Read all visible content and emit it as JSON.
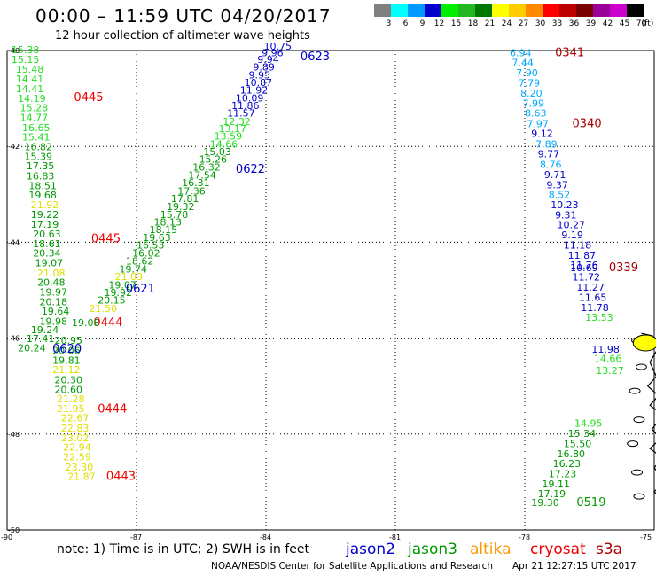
{
  "header": {
    "title": "00:00 – 11:59 UTC 04/20/2017",
    "subtitle": "12 hour collection of altimeter wave heights"
  },
  "color_scale": {
    "unit": "(ft)",
    "bins": [
      {
        "label": "3",
        "color": "#808080"
      },
      {
        "label": "6",
        "color": "#00ffff"
      },
      {
        "label": "9",
        "color": "#0099ff"
      },
      {
        "label": "12",
        "color": "#0000cc"
      },
      {
        "label": "15",
        "color": "#00ee00"
      },
      {
        "label": "18",
        "color": "#22b822"
      },
      {
        "label": "21",
        "color": "#007700"
      },
      {
        "label": "24",
        "color": "#ffff00"
      },
      {
        "label": "27",
        "color": "#ffcc00"
      },
      {
        "label": "30",
        "color": "#ff8800"
      },
      {
        "label": "33",
        "color": "#ff0000"
      },
      {
        "label": "36",
        "color": "#bb0000"
      },
      {
        "label": "39",
        "color": "#770000"
      },
      {
        "label": "42",
        "color": "#990099"
      },
      {
        "label": "45",
        "color": "#cc00cc"
      },
      {
        "label": "70",
        "color": "#000000"
      }
    ]
  },
  "axes": {
    "lat_ticks": [
      "-40",
      "-42",
      "-44",
      "-46",
      "-48",
      "-50"
    ],
    "lon_ticks": [
      "-90",
      "-87",
      "-84",
      "-81",
      "-78",
      "-75"
    ]
  },
  "colors": {
    "jason2": "#0000cc",
    "jason3": "#009900",
    "altika": "#ff9900",
    "cryosat": "#ee0000",
    "s3a": "#aa0000",
    "light_blue": "#00aaff",
    "yellow": "#e0e000",
    "light_green": "#22dd22"
  },
  "tracks": [
    {
      "id": "jason3-0445-descending",
      "points": [
        {
          "v": "15.38",
          "lat": -40.06,
          "lon": -89.9,
          "c": "light_green"
        },
        {
          "v": "15.15",
          "lat": -40.26,
          "lon": -89.9,
          "c": "light_green"
        },
        {
          "v": "15.48",
          "lat": -40.46,
          "lon": -89.8,
          "c": "light_green"
        },
        {
          "v": "14.41",
          "lat": -40.67,
          "lon": -89.8,
          "c": "light_green"
        },
        {
          "v": "14.41",
          "lat": -40.87,
          "lon": -89.8,
          "c": "light_green"
        },
        {
          "v": "14.19",
          "lat": -41.07,
          "lon": -89.75,
          "c": "light_green"
        },
        {
          "v": "15.28",
          "lat": -41.27,
          "lon": -89.7,
          "c": "light_green"
        },
        {
          "v": "14.77",
          "lat": -41.47,
          "lon": -89.7,
          "c": "light_green"
        },
        {
          "v": "16.65",
          "lat": -41.68,
          "lon": -89.65,
          "c": "light_green"
        },
        {
          "v": "15.41",
          "lat": -41.88,
          "lon": -89.65,
          "c": "light_green"
        },
        {
          "v": "16.82",
          "lat": -42.08,
          "lon": -89.6,
          "c": "jason3"
        },
        {
          "v": "15.39",
          "lat": -42.28,
          "lon": -89.6,
          "c": "jason3"
        },
        {
          "v": "17.35",
          "lat": -42.48,
          "lon": -89.55,
          "c": "jason3"
        },
        {
          "v": "16.83",
          "lat": -42.69,
          "lon": -89.55,
          "c": "jason3"
        },
        {
          "v": "18.51",
          "lat": -42.89,
          "lon": -89.5,
          "c": "jason3"
        },
        {
          "v": "19.68",
          "lat": -43.09,
          "lon": -89.5,
          "c": "jason3"
        },
        {
          "v": "21.92",
          "lat": -43.29,
          "lon": -89.45,
          "c": "yellow"
        },
        {
          "v": "19.22",
          "lat": -43.49,
          "lon": -89.45,
          "c": "jason3"
        },
        {
          "v": "17.19",
          "lat": -43.7,
          "lon": -89.45,
          "c": "jason3"
        },
        {
          "v": "20.63",
          "lat": -43.9,
          "lon": -89.4,
          "c": "jason3"
        },
        {
          "v": "18.61",
          "lat": -44.1,
          "lon": -89.4,
          "c": "jason3"
        },
        {
          "v": "20.34",
          "lat": -44.3,
          "lon": -89.4,
          "c": "jason3"
        },
        {
          "v": "19.07",
          "lat": -44.5,
          "lon": -89.35,
          "c": "jason3"
        },
        {
          "v": "21.08",
          "lat": -44.71,
          "lon": -89.3,
          "c": "yellow"
        },
        {
          "v": "20.48",
          "lat": -44.91,
          "lon": -89.3,
          "c": "jason3"
        },
        {
          "v": "19.97",
          "lat": -45.11,
          "lon": -89.25,
          "c": "jason3"
        },
        {
          "v": "20.18",
          "lat": -45.31,
          "lon": -89.25,
          "c": "jason3"
        },
        {
          "v": "19.64",
          "lat": -45.51,
          "lon": -89.2,
          "c": "jason3"
        },
        {
          "v": "19.98",
          "lat": -45.72,
          "lon": -89.25,
          "c": "jason3"
        },
        {
          "v": "19.24",
          "lat": -45.9,
          "lon": -89.45,
          "c": "jason3"
        },
        {
          "v": "17.41",
          "lat": -46.08,
          "lon": -89.55,
          "c": "jason3"
        },
        {
          "v": "20.24",
          "lat": -46.28,
          "lon": -89.75,
          "c": "jason3"
        }
      ],
      "time": {
        "label": "0445",
        "lat": -41.05,
        "lon": -88.45,
        "c": "cryosat"
      }
    },
    {
      "id": "jason3-0444-descending",
      "points": [
        {
          "v": "20.95",
          "lat": -46.12,
          "lon": -88.9,
          "c": "jason3"
        },
        {
          "v": "20.06",
          "lat": -46.33,
          "lon": -88.95,
          "c": "jason3"
        },
        {
          "v": "19.81",
          "lat": -46.53,
          "lon": -88.95,
          "c": "jason3"
        },
        {
          "v": "21.12",
          "lat": -46.73,
          "lon": -88.95,
          "c": "yellow"
        },
        {
          "v": "20.30",
          "lat": -46.94,
          "lon": -88.9,
          "c": "jason3"
        },
        {
          "v": "20.60",
          "lat": -47.14,
          "lon": -88.9,
          "c": "jason3"
        },
        {
          "v": "21.28",
          "lat": -47.34,
          "lon": -88.85,
          "c": "yellow"
        },
        {
          "v": "21.95",
          "lat": -47.54,
          "lon": -88.85,
          "c": "yellow"
        },
        {
          "v": "22.67",
          "lat": -47.74,
          "lon": -88.75,
          "c": "yellow"
        },
        {
          "v": "22.83",
          "lat": -47.95,
          "lon": -88.75,
          "c": "yellow"
        },
        {
          "v": "23.02",
          "lat": -48.15,
          "lon": -88.75,
          "c": "yellow"
        },
        {
          "v": "22.94",
          "lat": -48.35,
          "lon": -88.7,
          "c": "yellow"
        },
        {
          "v": "22.59",
          "lat": -48.55,
          "lon": -88.7,
          "c": "yellow"
        },
        {
          "v": "23.30",
          "lat": -48.76,
          "lon": -88.65,
          "c": "yellow"
        },
        {
          "v": "21.87",
          "lat": -48.96,
          "lon": -88.6,
          "c": "yellow"
        }
      ],
      "times": [
        {
          "label": "0444",
          "lat": -45.75,
          "lon": -88.0,
          "c": "cryosat"
        },
        {
          "label": "0444",
          "lat": -47.55,
          "lon": -87.9,
          "c": "cryosat"
        },
        {
          "label": "0443",
          "lat": -48.96,
          "lon": -87.7,
          "c": "cryosat"
        }
      ]
    },
    {
      "id": "jason3-ascending-0621",
      "points": [
        {
          "v": "10.75",
          "lat": -39.98,
          "lon": -84.05,
          "c": "jason2"
        },
        {
          "v": "9.96",
          "lat": -40.12,
          "lon": -84.1,
          "c": "jason2"
        },
        {
          "v": "9.94",
          "lat": -40.26,
          "lon": -84.2,
          "c": "jason2"
        },
        {
          "v": "9.89",
          "lat": -40.42,
          "lon": -84.3,
          "c": "jason2"
        },
        {
          "v": "9.95",
          "lat": -40.58,
          "lon": -84.4,
          "c": "jason2"
        },
        {
          "v": "10.87",
          "lat": -40.74,
          "lon": -84.5,
          "c": "jason2"
        },
        {
          "v": "11.92",
          "lat": -40.9,
          "lon": -84.6,
          "c": "jason2"
        },
        {
          "v": "10.09",
          "lat": -41.06,
          "lon": -84.7,
          "c": "jason2"
        },
        {
          "v": "11.86",
          "lat": -41.22,
          "lon": -84.8,
          "c": "jason2"
        },
        {
          "v": "11.57",
          "lat": -41.38,
          "lon": -84.9,
          "c": "jason2"
        },
        {
          "v": "12.32",
          "lat": -41.55,
          "lon": -85.0,
          "c": "light_green"
        },
        {
          "v": "13.17",
          "lat": -41.7,
          "lon": -85.1,
          "c": "light_green"
        },
        {
          "v": "13.59",
          "lat": -41.86,
          "lon": -85.2,
          "c": "light_green"
        },
        {
          "v": "14.66",
          "lat": -42.02,
          "lon": -85.3,
          "c": "light_green"
        },
        {
          "v": "15.03",
          "lat": -42.18,
          "lon": -85.45,
          "c": "jason3"
        },
        {
          "v": "15.26",
          "lat": -42.34,
          "lon": -85.55,
          "c": "jason3"
        },
        {
          "v": "16.32",
          "lat": -42.5,
          "lon": -85.7,
          "c": "jason3"
        },
        {
          "v": "17.54",
          "lat": -42.67,
          "lon": -85.8,
          "c": "jason3"
        },
        {
          "v": "16.31",
          "lat": -42.83,
          "lon": -85.95,
          "c": "jason3"
        },
        {
          "v": "17.36",
          "lat": -43.0,
          "lon": -86.05,
          "c": "jason3"
        },
        {
          "v": "17.81",
          "lat": -43.16,
          "lon": -86.2,
          "c": "jason3"
        },
        {
          "v": "19.32",
          "lat": -43.33,
          "lon": -86.3,
          "c": "jason3"
        },
        {
          "v": "15.78",
          "lat": -43.49,
          "lon": -86.45,
          "c": "jason3"
        },
        {
          "v": "18.13",
          "lat": -43.65,
          "lon": -86.6,
          "c": "jason3"
        },
        {
          "v": "18.15",
          "lat": -43.81,
          "lon": -86.7,
          "c": "jason3"
        },
        {
          "v": "19.63",
          "lat": -43.97,
          "lon": -86.85,
          "c": "jason3"
        },
        {
          "v": "16.53",
          "lat": -44.13,
          "lon": -87.0,
          "c": "jason3"
        },
        {
          "v": "16.02",
          "lat": -44.3,
          "lon": -87.1,
          "c": "jason3"
        },
        {
          "v": "18.62",
          "lat": -44.46,
          "lon": -87.25,
          "c": "jason3"
        },
        {
          "v": "19.74",
          "lat": -44.63,
          "lon": -87.4,
          "c": "jason3"
        },
        {
          "v": "21.03",
          "lat": -44.79,
          "lon": -87.5,
          "c": "yellow"
        },
        {
          "v": "19.07",
          "lat": -44.96,
          "lon": -87.65,
          "c": "jason3"
        },
        {
          "v": "19.92",
          "lat": -45.12,
          "lon": -87.75,
          "c": "jason3"
        },
        {
          "v": "20.15",
          "lat": -45.28,
          "lon": -87.9,
          "c": "jason3"
        },
        {
          "v": "21.50",
          "lat": -45.45,
          "lon": -88.1,
          "c": "yellow"
        },
        {
          "v": "19.08",
          "lat": -45.75,
          "lon": -88.5,
          "c": "jason3"
        }
      ],
      "times": [
        {
          "label": "0623",
          "lat": -40.2,
          "lon": -83.2,
          "c": "jason2"
        },
        {
          "label": "0622",
          "lat": -42.55,
          "lon": -84.7,
          "c": "jason2"
        },
        {
          "label": "0445",
          "lat": -44.0,
          "lon": -88.05,
          "c": "cryosat"
        },
        {
          "label": "0621",
          "lat": -45.05,
          "lon": -87.25,
          "c": "jason2"
        },
        {
          "label": "0620",
          "lat": -46.3,
          "lon": -88.95,
          "c": "jason2"
        }
      ]
    },
    {
      "id": "jason2-0340-descending",
      "points": [
        {
          "v": "6.94",
          "lat": -40.12,
          "lon": -78.35,
          "c": "light_blue"
        },
        {
          "v": "7.44",
          "lat": -40.32,
          "lon": -78.3,
          "c": "light_blue"
        },
        {
          "v": "7.90",
          "lat": -40.54,
          "lon": -78.2,
          "c": "light_blue"
        },
        {
          "v": "7.79",
          "lat": -40.75,
          "lon": -78.15,
          "c": "light_blue"
        },
        {
          "v": "8.20",
          "lat": -40.96,
          "lon": -78.1,
          "c": "light_blue"
        },
        {
          "v": "7.99",
          "lat": -41.17,
          "lon": -78.05,
          "c": "light_blue"
        },
        {
          "v": "8.63",
          "lat": -41.38,
          "lon": -78.0,
          "c": "light_blue"
        },
        {
          "v": "7.97",
          "lat": -41.6,
          "lon": -77.95,
          "c": "light_blue"
        },
        {
          "v": "9.12",
          "lat": -41.8,
          "lon": -77.85,
          "c": "jason2"
        },
        {
          "v": "7.89",
          "lat": -42.02,
          "lon": -77.75,
          "c": "light_blue"
        },
        {
          "v": "9.77",
          "lat": -42.23,
          "lon": -77.7,
          "c": "jason2"
        },
        {
          "v": "8.76",
          "lat": -42.45,
          "lon": -77.65,
          "c": "light_blue"
        },
        {
          "v": "9.71",
          "lat": -42.66,
          "lon": -77.55,
          "c": "jason2"
        },
        {
          "v": "9.37",
          "lat": -42.87,
          "lon": -77.5,
          "c": "jason2"
        },
        {
          "v": "8.52",
          "lat": -43.08,
          "lon": -77.45,
          "c": "light_blue"
        },
        {
          "v": "10.23",
          "lat": -43.29,
          "lon": -77.4,
          "c": "jason2"
        },
        {
          "v": "9.31",
          "lat": -43.5,
          "lon": -77.3,
          "c": "jason2"
        },
        {
          "v": "10.27",
          "lat": -43.71,
          "lon": -77.25,
          "c": "jason2"
        },
        {
          "v": "9.19",
          "lat": -43.92,
          "lon": -77.15,
          "c": "jason2"
        },
        {
          "v": "11.18",
          "lat": -44.13,
          "lon": -77.1,
          "c": "jason2"
        },
        {
          "v": "11.87",
          "lat": -44.34,
          "lon": -77.0,
          "c": "jason2"
        },
        {
          "v": "11.76",
          "lat": -44.55,
          "lon": -76.95,
          "c": "jason2"
        },
        {
          "v": "10.69",
          "lat": -44.6,
          "lon": -76.95,
          "c": "jason2"
        },
        {
          "v": "11.72",
          "lat": -44.8,
          "lon": -76.9,
          "c": "jason2"
        },
        {
          "v": "11.27",
          "lat": -45.01,
          "lon": -76.8,
          "c": "jason2"
        },
        {
          "v": "11.65",
          "lat": -45.22,
          "lon": -76.75,
          "c": "jason2"
        },
        {
          "v": "11.78",
          "lat": -45.43,
          "lon": -76.7,
          "c": "jason2"
        },
        {
          "v": "13.53",
          "lat": -45.64,
          "lon": -76.6,
          "c": "light_green"
        },
        {
          "v": "11.98",
          "lat": -46.3,
          "lon": -76.45,
          "c": "jason2"
        },
        {
          "v": "14.66",
          "lat": -46.5,
          "lon": -76.4,
          "c": "light_green"
        },
        {
          "v": "13.27",
          "lat": -46.75,
          "lon": -76.35,
          "c": "light_green"
        }
      ],
      "times": [
        {
          "label": "0341",
          "lat": -40.12,
          "lon": -77.3,
          "c": "s3a"
        },
        {
          "label": "0340",
          "lat": -41.6,
          "lon": -76.9,
          "c": "s3a"
        },
        {
          "label": "0339",
          "lat": -44.6,
          "lon": -76.05,
          "c": "s3a"
        }
      ]
    },
    {
      "id": "jason3-0519-ascending",
      "points": [
        {
          "v": "14.95",
          "lat": -47.85,
          "lon": -76.85,
          "c": "light_green"
        },
        {
          "v": "15.34",
          "lat": -48.06,
          "lon": -77.0,
          "c": "jason3"
        },
        {
          "v": "15.50",
          "lat": -48.27,
          "lon": -77.1,
          "c": "jason3"
        },
        {
          "v": "16.80",
          "lat": -48.48,
          "lon": -77.25,
          "c": "jason3"
        },
        {
          "v": "16.23",
          "lat": -48.69,
          "lon": -77.35,
          "c": "jason3"
        },
        {
          "v": "17.23",
          "lat": -48.9,
          "lon": -77.45,
          "c": "jason3"
        },
        {
          "v": "19.11",
          "lat": -49.11,
          "lon": -77.6,
          "c": "jason3"
        },
        {
          "v": "17.19",
          "lat": -49.32,
          "lon": -77.7,
          "c": "jason3"
        },
        {
          "v": "19.30",
          "lat": -49.5,
          "lon": -77.85,
          "c": "jason3"
        }
      ],
      "times": [
        {
          "label": "0519",
          "lat": -49.5,
          "lon": -76.8,
          "c": "jason3"
        }
      ]
    }
  ],
  "legend": {
    "note": "note:  1) Time is in UTC;  2) SWH is in feet",
    "items": [
      {
        "label": "jason2",
        "color": "#0000cc"
      },
      {
        "label": "jason3",
        "color": "#009900"
      },
      {
        "label": "altika",
        "color": "#ff9900"
      },
      {
        "label": "cryosat",
        "color": "#ee0000"
      },
      {
        "label": "s3a",
        "color": "#aa0000"
      }
    ]
  },
  "footer": {
    "credit": "NOAA/NESDIS Center for Satellite Applications and Research",
    "timestamp": "Apr 21 12:27:15 UTC 2017"
  }
}
